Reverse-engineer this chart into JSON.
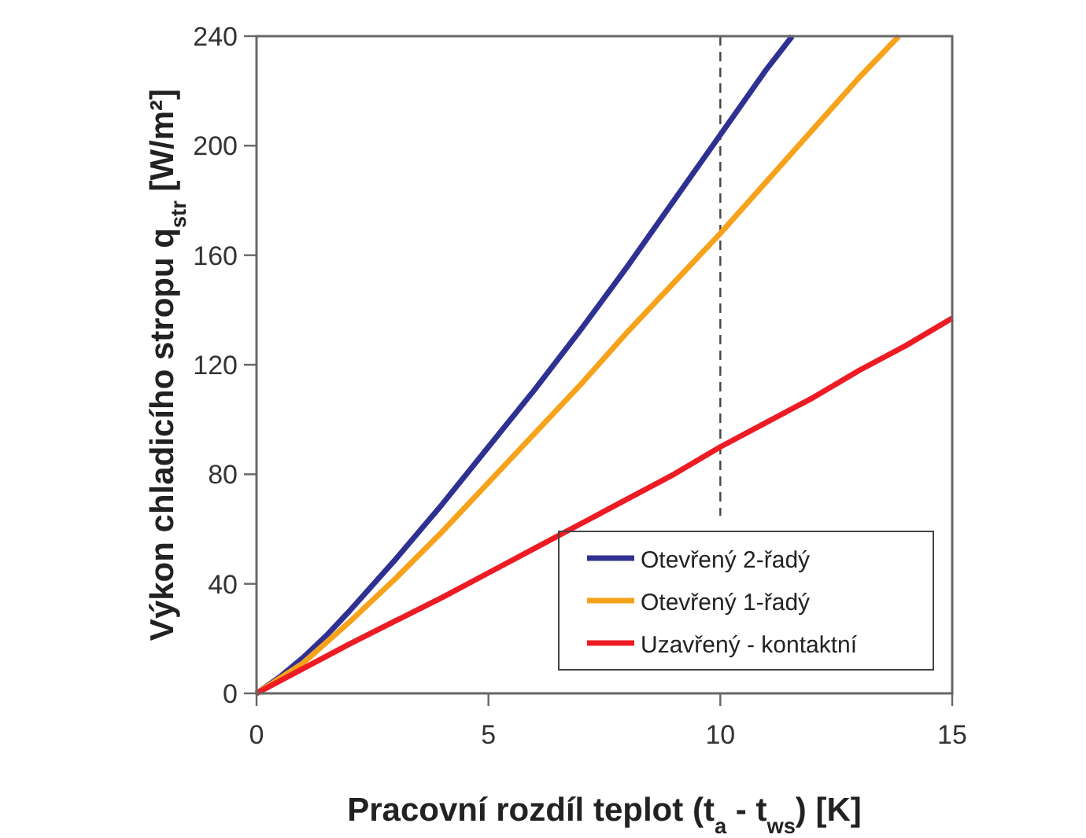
{
  "chart_data": {
    "type": "line",
    "xlabel": "Pracovní rozdíl teplot (t$_{a}$ - t$_{ws}$) [K]",
    "ylabel": "Výkon chladicího stropu q$_{str}$ [W/m²]",
    "xlim": [
      0,
      15
    ],
    "xticks": [
      0,
      5,
      10,
      15
    ],
    "ylim": [
      0,
      240
    ],
    "yticks": [
      0,
      40,
      80,
      120,
      160,
      200,
      240
    ],
    "grid": false,
    "legend": "bottom right",
    "line_style": "solid",
    "ref_lines": [
      {
        "axis": "x",
        "value": 10,
        "color": "#444444",
        "line_style": "dashed"
      }
    ],
    "series": [
      {
        "name": "Otevřený 2-řadý",
        "color": "#2e3192",
        "x": [
          0,
          0.5,
          1,
          1.5,
          2,
          3,
          4,
          5,
          6,
          7,
          8,
          9,
          10,
          11,
          11.55
        ],
        "values": [
          0,
          6,
          13,
          21,
          30,
          49,
          69,
          90,
          111,
          133,
          156,
          180,
          204,
          228,
          240
        ]
      },
      {
        "name": "Otevřený 1-řadý",
        "color": "#f7a21b",
        "x": [
          0,
          1,
          2,
          3,
          4,
          5,
          6,
          7,
          8,
          9,
          10,
          11,
          12,
          13,
          13.85
        ],
        "values": [
          0,
          11,
          26,
          42,
          59,
          77,
          95,
          113,
          132,
          150,
          168,
          187,
          206,
          225,
          240
        ]
      },
      {
        "name": "Uzavřený - kontaktní",
        "color": "#ed1c24",
        "x": [
          0,
          1,
          2,
          3,
          4,
          5,
          6,
          7,
          8,
          9,
          10,
          11,
          12,
          13,
          14,
          15
        ],
        "values": [
          0,
          9,
          18,
          26.5,
          35,
          44,
          53,
          62,
          71,
          80,
          90,
          99,
          108,
          118,
          127,
          137
        ]
      }
    ]
  }
}
